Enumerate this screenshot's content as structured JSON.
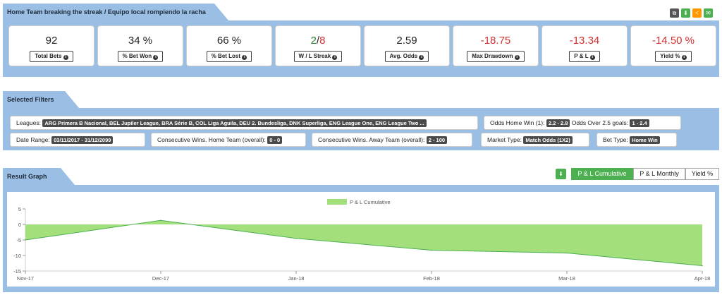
{
  "header": {
    "title": "Home Team breaking the streak / Equipo local rompiendo la racha"
  },
  "header_buttons": [
    {
      "icon": "copy-icon",
      "color": "#555555"
    },
    {
      "icon": "download-icon",
      "color": "#4caf50"
    },
    {
      "icon": "share-icon",
      "color": "#ff9800"
    },
    {
      "icon": "email-icon",
      "color": "#4caf50"
    }
  ],
  "stats": [
    {
      "value": "92",
      "label": "Total Bets"
    },
    {
      "value": "34 %",
      "label": "% Bet Won"
    },
    {
      "value": "66 %",
      "label": "% Bet Lost"
    },
    {
      "value_won": "2",
      "value_sep": "/",
      "value_lost": "8",
      "label": "W / L Streak"
    },
    {
      "value": "2.59",
      "label": "Avg. Odds"
    },
    {
      "value": "-18.75",
      "label": "Max Drawdown"
    },
    {
      "value": "-13.34",
      "label": "P & L"
    },
    {
      "value": "-14.50 %",
      "label": "Yield %"
    }
  ],
  "filters_title": "Selected Filters",
  "filters": {
    "leagues_label": "Leagues:",
    "leagues_value": "ARG Primera B Nacional, BEL Jupiler League, BRA Série B, COL Liga Aguila, DEU 2. Bundesliga, DNK Superliga, ENG League One, ENG League Two ...",
    "odds_home_label": "Odds Home Win (1):",
    "odds_home_value": "2.2 - 2.8",
    "odds_over_label": "Odds Over 2.5 goals:",
    "odds_over_value": "1 - 2.4",
    "date_label": "Date Range:",
    "date_value": "03/11/2017 - 31/12/2099",
    "cons_home_label": "Consecutive Wins. Home Team (overall):",
    "cons_home_value": "0 - 0",
    "cons_away_label": "Consecutive Wins. Away Team (overall):",
    "cons_away_value": "2 - 100",
    "market_label": "Market Type:",
    "market_value": "Match Odds (1X2)",
    "bettype_label": "Bet Type:",
    "bettype_value": "Home Win"
  },
  "graph_title": "Result Graph",
  "graph_tabs": [
    "P & L Cumulative",
    "P & L Monthly",
    "Yield %"
  ],
  "chart_data": {
    "type": "area",
    "series": [
      {
        "name": "P & L Cumulative",
        "x": [
          "Nov-17",
          "Dec-17",
          "Jan-18",
          "Feb-18",
          "Mar-18",
          "Apr-18"
        ],
        "values": [
          -5,
          1.3,
          -4.5,
          -8.3,
          -9.2,
          -13.3
        ]
      }
    ],
    "x_ticks": [
      "Nov-17",
      "Dec-17",
      "Jan-18",
      "Feb-18",
      "Mar-18",
      "Apr-18"
    ],
    "y_ticks": [
      "5",
      "0",
      "-5",
      "-10",
      "-15"
    ],
    "ylim": [
      -15,
      5
    ],
    "legend": "top-center",
    "fill_color": "#a3e07c",
    "line_color": "#4caf50"
  }
}
